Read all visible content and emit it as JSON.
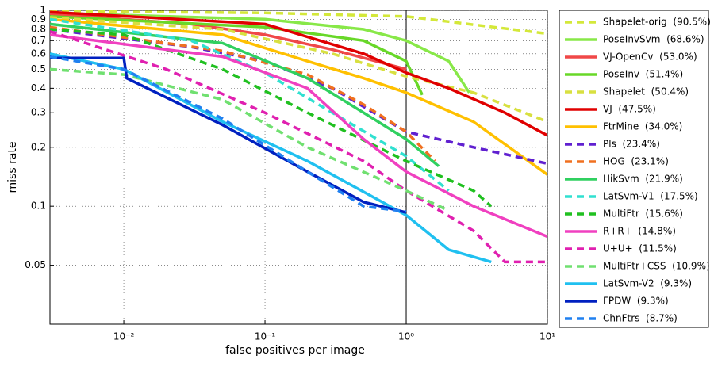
{
  "chart_data": {
    "type": "line",
    "x_log": true,
    "y_log": true,
    "grid": true,
    "legend": "outside-right",
    "xlabel": "false positives per image",
    "ylabel": "miss rate",
    "xlim": [
      0.003,
      10
    ],
    "ylim": [
      0.025,
      1
    ],
    "reference_x": 1,
    "xticks": [
      {
        "value": 0.01,
        "label": "10⁻²"
      },
      {
        "value": 0.1,
        "label": "10⁻¹"
      },
      {
        "value": 1,
        "label": "10⁰"
      },
      {
        "value": 10,
        "label": "10¹"
      }
    ],
    "yticks": [
      0.05,
      0.1,
      0.2,
      0.3,
      0.4,
      0.5,
      0.6,
      0.7,
      0.8,
      0.9,
      1
    ],
    "series": [
      {
        "name": "Shapelet-orig  (90.5%)",
        "color": "#d4e83a",
        "dashed": true,
        "x": [
          0.003,
          0.1,
          1,
          10
        ],
        "values": [
          0.99,
          0.97,
          0.93,
          0.76
        ]
      },
      {
        "name": "PoseInvSvm  (68.6%)",
        "color": "#88e848",
        "dashed": false,
        "x": [
          0.003,
          0.1,
          0.5,
          1,
          2,
          2.8
        ],
        "values": [
          0.97,
          0.9,
          0.8,
          0.7,
          0.55,
          0.38
        ]
      },
      {
        "name": "VJ-OpenCv  (53.0%)",
        "color": "#f04848",
        "dashed": false,
        "x": [
          0.003,
          0.03,
          0.1,
          0.3,
          1
        ],
        "values": [
          0.96,
          0.85,
          0.75,
          0.63,
          0.5
        ]
      },
      {
        "name": "PoseInv  (51.4%)",
        "color": "#68d828",
        "dashed": false,
        "x": [
          0.003,
          0.1,
          0.5,
          1,
          1.3
        ],
        "values": [
          0.93,
          0.82,
          0.7,
          0.55,
          0.37
        ]
      },
      {
        "name": "Shapelet  (50.4%)",
        "color": "#d8e040",
        "dashed": true,
        "x": [
          0.003,
          0.05,
          0.3,
          1,
          3,
          10
        ],
        "values": [
          0.92,
          0.8,
          0.6,
          0.46,
          0.38,
          0.27
        ]
      },
      {
        "name": "VJ  (47.5%)",
        "color": "#e00000",
        "dashed": false,
        "x": [
          0.003,
          0.1,
          0.5,
          1,
          2,
          5,
          10
        ],
        "values": [
          0.98,
          0.85,
          0.6,
          0.48,
          0.4,
          0.3,
          0.23
        ]
      },
      {
        "name": "FtrMine  (34.0%)",
        "color": "#ffc000",
        "dashed": false,
        "x": [
          0.003,
          0.05,
          0.2,
          0.5,
          1,
          3,
          10
        ],
        "values": [
          0.9,
          0.75,
          0.55,
          0.45,
          0.38,
          0.27,
          0.145
        ]
      },
      {
        "name": "Pls  (23.4%)",
        "color": "#6020d0",
        "dashed": true,
        "x": [
          0.003,
          0.03,
          0.1,
          0.3,
          1,
          3,
          10
        ],
        "values": [
          0.8,
          0.65,
          0.55,
          0.4,
          0.24,
          0.2,
          0.165
        ]
      },
      {
        "name": "HOG  (23.1%)",
        "color": "#f07020",
        "dashed": true,
        "x": [
          0.003,
          0.05,
          0.2,
          0.5,
          1,
          1.6
        ],
        "values": [
          0.82,
          0.62,
          0.47,
          0.33,
          0.24,
          0.17
        ]
      },
      {
        "name": "HikSvm  (21.9%)",
        "color": "#30d060",
        "dashed": false,
        "x": [
          0.003,
          0.05,
          0.2,
          0.5,
          1,
          1.7
        ],
        "values": [
          0.85,
          0.68,
          0.45,
          0.3,
          0.22,
          0.16
        ]
      },
      {
        "name": "LatSvm-V1  (17.5%)",
        "color": "#30e0d0",
        "dashed": true,
        "x": [
          0.003,
          0.03,
          0.1,
          0.3,
          1,
          2
        ],
        "values": [
          0.9,
          0.7,
          0.48,
          0.3,
          0.18,
          0.12
        ]
      },
      {
        "name": "MultiFtr  (15.6%)",
        "color": "#20c020",
        "dashed": true,
        "x": [
          0.003,
          0.01,
          0.05,
          0.2,
          1,
          3,
          4
        ],
        "values": [
          0.8,
          0.75,
          0.5,
          0.3,
          0.17,
          0.12,
          0.1
        ]
      },
      {
        "name": "R+R+  (14.8%)",
        "color": "#f040c0",
        "dashed": false,
        "x": [
          0.003,
          0.05,
          0.2,
          0.5,
          1,
          3,
          10
        ],
        "values": [
          0.75,
          0.58,
          0.4,
          0.22,
          0.15,
          0.1,
          0.07
        ]
      },
      {
        "name": "U+U+  (11.5%)",
        "color": "#e020b0",
        "dashed": true,
        "x": [
          0.003,
          0.02,
          0.1,
          0.5,
          1,
          3,
          5,
          10
        ],
        "values": [
          0.78,
          0.5,
          0.3,
          0.17,
          0.12,
          0.075,
          0.052,
          0.052
        ]
      },
      {
        "name": "MultiFtr+CSS  (10.9%)",
        "color": "#70e070",
        "dashed": true,
        "x": [
          0.003,
          0.01,
          0.05,
          0.2,
          1,
          2
        ],
        "values": [
          0.5,
          0.47,
          0.35,
          0.2,
          0.12,
          0.095
        ]
      },
      {
        "name": "LatSvm-V2  (9.3%)",
        "color": "#20c0f0",
        "dashed": false,
        "x": [
          0.003,
          0.01,
          0.05,
          0.2,
          1,
          2,
          4
        ],
        "values": [
          0.6,
          0.5,
          0.27,
          0.17,
          0.09,
          0.06,
          0.052
        ]
      },
      {
        "name": "FPDW  (9.3%)",
        "color": "#0020c0",
        "dashed": false,
        "x": [
          0.003,
          0.01,
          0.0105,
          0.05,
          0.2,
          0.5,
          1
        ],
        "values": [
          0.57,
          0.57,
          0.45,
          0.26,
          0.15,
          0.105,
          0.093
        ]
      },
      {
        "name": "ChnFtrs  (8.7%)",
        "color": "#2080f0",
        "dashed": true,
        "x": [
          0.003,
          0.01,
          0.05,
          0.2,
          0.5,
          1
        ],
        "values": [
          0.58,
          0.5,
          0.28,
          0.15,
          0.1,
          0.094
        ]
      }
    ]
  }
}
